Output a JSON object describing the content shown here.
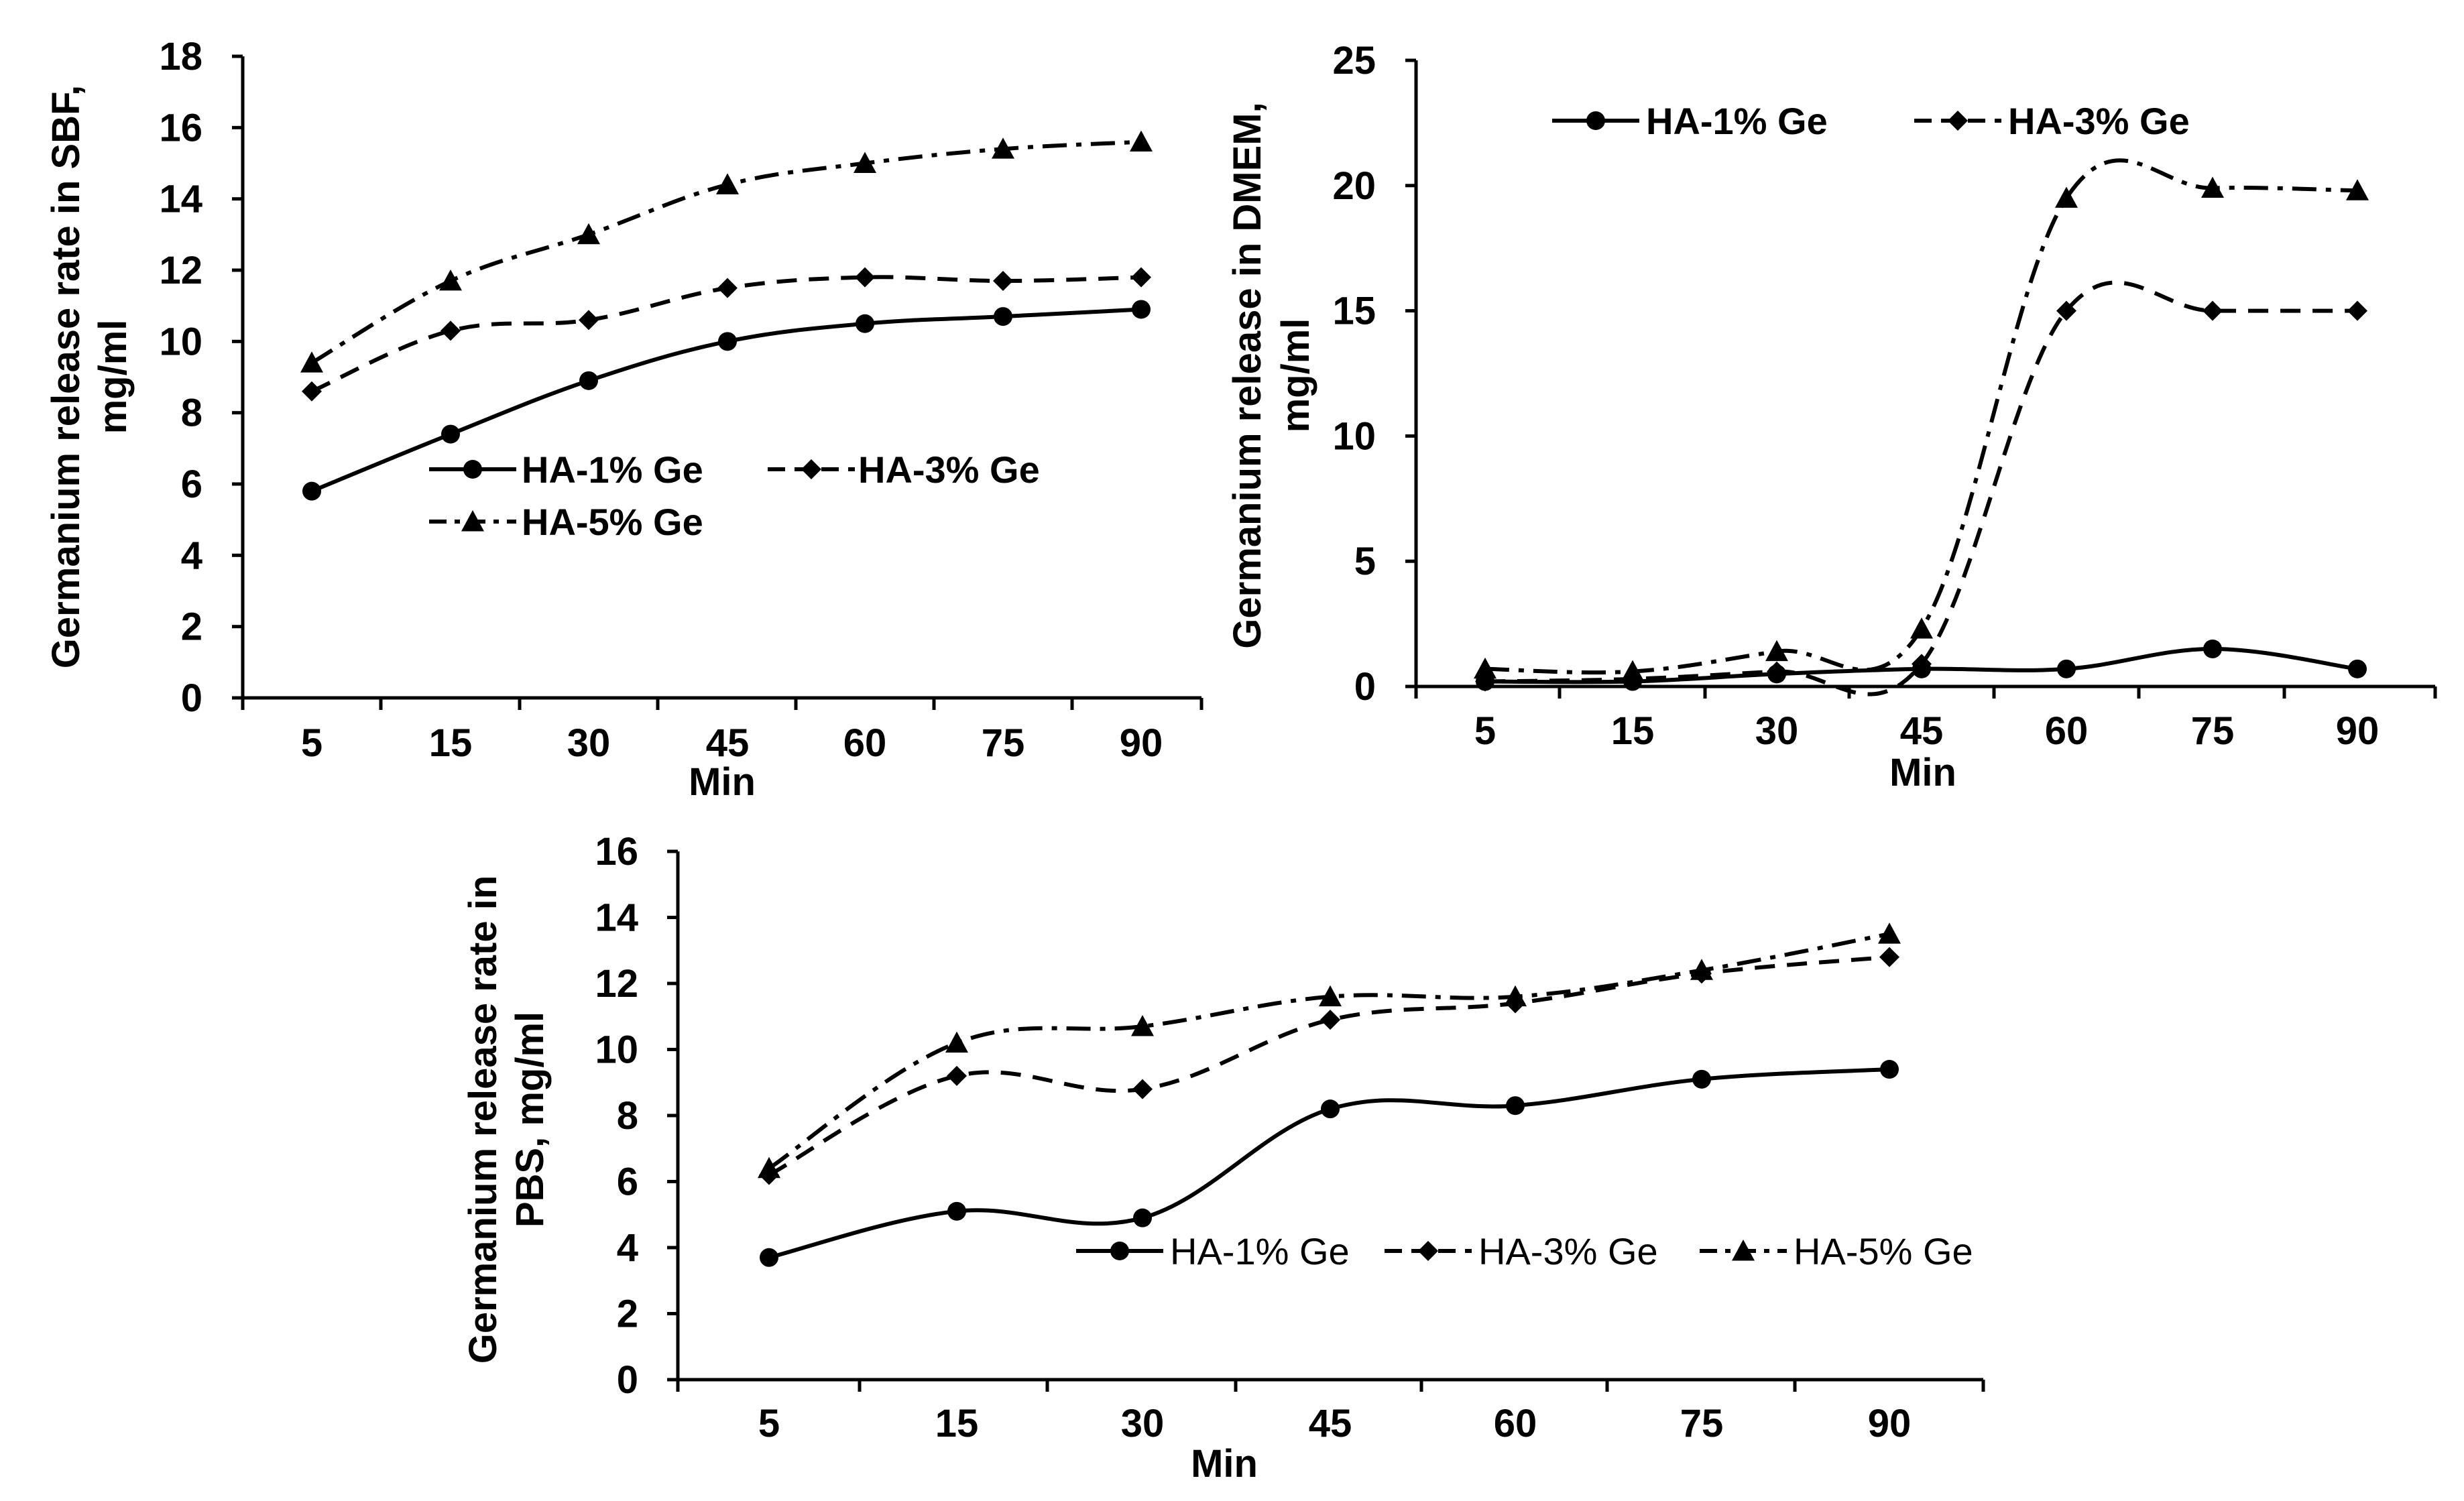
{
  "chart_data": [
    {
      "id": "sbf",
      "type": "line",
      "categories": [
        "5",
        "15",
        "30",
        "45",
        "60",
        "75",
        "90"
      ],
      "series": [
        {
          "name": "HA-1% Ge",
          "marker": "circle",
          "dash": "solid",
          "values": [
            5.8,
            7.4,
            8.9,
            10.0,
            10.5,
            10.7,
            10.9
          ]
        },
        {
          "name": "HA-3% Ge",
          "marker": "diamond",
          "dash": "dash",
          "values": [
            8.6,
            10.3,
            10.6,
            11.5,
            11.8,
            11.7,
            11.8
          ]
        },
        {
          "name": "HA-5% Ge",
          "marker": "triangle",
          "dash": "dashdot",
          "values": [
            9.4,
            11.7,
            13.0,
            14.4,
            15.0,
            15.4,
            15.6
          ]
        }
      ],
      "xlabel": "Min",
      "ylabel_lines": [
        "Germanium release rate in SBF,",
        "mg/ml"
      ],
      "ylim": [
        0,
        18
      ],
      "yticks": [
        "0",
        "2",
        "4",
        "6",
        "8",
        "10",
        "12",
        "14",
        "16",
        "18"
      ],
      "legend_style": "bold"
    },
    {
      "id": "dmem",
      "type": "line",
      "categories": [
        "5",
        "15",
        "30",
        "45",
        "60",
        "75",
        "90"
      ],
      "series": [
        {
          "name": "HA-1% Ge",
          "marker": "circle",
          "dash": "solid",
          "values": [
            0.2,
            0.2,
            0.5,
            0.7,
            0.7,
            1.5,
            0.7
          ],
          "in_legend": true
        },
        {
          "name": "HA-3% Ge",
          "marker": "diamond",
          "dash": "dash",
          "values": [
            0.2,
            0.3,
            0.6,
            0.9,
            15.0,
            15.0,
            15.0
          ],
          "in_legend": true
        },
        {
          "name": "HA-5% Ge",
          "marker": "triangle",
          "dash": "dashdot",
          "values": [
            0.7,
            0.6,
            1.4,
            2.3,
            19.5,
            19.9,
            19.8
          ],
          "in_legend": false
        }
      ],
      "xlabel": "Min",
      "ylabel_lines": [
        "Germanium release in DMEM,",
        "mg/ml"
      ],
      "ylim": [
        0,
        25
      ],
      "yticks": [
        "0",
        "5",
        "10",
        "15",
        "20",
        "25"
      ],
      "legend_style": "bold"
    },
    {
      "id": "pbs",
      "type": "line",
      "categories": [
        "5",
        "15",
        "30",
        "45",
        "60",
        "75",
        "90"
      ],
      "series": [
        {
          "name": "HA-1% Ge",
          "marker": "circle",
          "dash": "solid",
          "values": [
            3.7,
            5.1,
            4.9,
            8.2,
            8.3,
            9.1,
            9.4
          ]
        },
        {
          "name": "HA-3% Ge",
          "marker": "diamond",
          "dash": "dash",
          "values": [
            6.2,
            9.2,
            8.8,
            10.9,
            11.4,
            12.3,
            12.8
          ]
        },
        {
          "name": "HA-5% Ge",
          "marker": "triangle",
          "dash": "dashdot",
          "values": [
            6.4,
            10.2,
            10.7,
            11.6,
            11.6,
            12.4,
            13.5
          ]
        }
      ],
      "xlabel": "Min",
      "ylabel_lines": [
        "Germanium release rate in",
        "PBS, mg/ml"
      ],
      "ylim": [
        0,
        16
      ],
      "yticks": [
        "0",
        "2",
        "4",
        "6",
        "8",
        "10",
        "12",
        "14",
        "16"
      ],
      "legend_style": "normal"
    }
  ]
}
